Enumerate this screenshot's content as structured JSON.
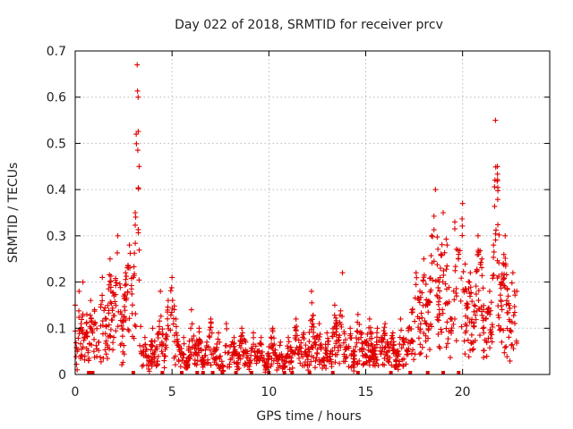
{
  "chart_data": {
    "type": "scatter",
    "title": "Day 022 of 2018, SRMTID for receiver prcv",
    "xlabel": "GPS time / hours",
    "ylabel": "SRMTID / TECUs",
    "xlim": [
      0,
      24.5
    ],
    "ylim": [
      0,
      0.7
    ],
    "xticks": [
      0,
      5,
      10,
      15,
      20
    ],
    "xtick_labels": [
      "0",
      "5",
      "10",
      "15",
      "20"
    ],
    "yticks": [
      0,
      0.1,
      0.2,
      0.3,
      0.4,
      0.5,
      0.6,
      0.7
    ],
    "ytick_labels": [
      "0",
      "0.1",
      "0.2",
      "0.3",
      "0.4",
      "0.5",
      "0.6",
      "0.7"
    ],
    "grid": true,
    "marker": "plus",
    "series_color": "#e00000",
    "series": [
      {
        "name": "SRMTID",
        "x": [
          0.0,
          0.1,
          0.2,
          0.3,
          0.4,
          0.5,
          0.6,
          0.7,
          0.8,
          0.9,
          1.0,
          1.2,
          1.4,
          1.6,
          1.8,
          2.0,
          2.2,
          2.4,
          2.6,
          2.8,
          3.0,
          3.1,
          3.15,
          3.2,
          3.25,
          3.3,
          3.4,
          3.6,
          3.8,
          4.0,
          4.2,
          4.4,
          4.6,
          4.8,
          5.0,
          5.2,
          5.4,
          5.6,
          5.8,
          6.0,
          6.2,
          6.4,
          6.6,
          6.8,
          7.0,
          7.2,
          7.4,
          7.6,
          7.8,
          8.0,
          8.2,
          8.4,
          8.6,
          8.8,
          9.0,
          9.2,
          9.4,
          9.6,
          9.8,
          10.0,
          10.2,
          10.4,
          10.6,
          10.8,
          11.0,
          11.2,
          11.4,
          11.6,
          11.8,
          12.0,
          12.2,
          12.4,
          12.6,
          12.8,
          13.0,
          13.2,
          13.4,
          13.6,
          13.8,
          14.0,
          14.2,
          14.4,
          14.6,
          14.8,
          15.0,
          15.2,
          15.4,
          15.6,
          15.8,
          16.0,
          16.2,
          16.4,
          16.6,
          16.8,
          17.0,
          17.2,
          17.4,
          17.6,
          17.8,
          18.0,
          18.2,
          18.4,
          18.6,
          18.8,
          19.0,
          19.2,
          19.4,
          19.6,
          19.8,
          20.0,
          20.2,
          20.4,
          20.6,
          20.8,
          21.0,
          21.2,
          21.4,
          21.6,
          21.7,
          21.8,
          22.0,
          22.2,
          22.4,
          22.6,
          22.8
        ],
        "y": [
          0.15,
          0.05,
          0.18,
          0.11,
          0.2,
          0.08,
          0.13,
          0.03,
          0.16,
          0.09,
          0.14,
          0.07,
          0.21,
          0.12,
          0.25,
          0.17,
          0.3,
          0.13,
          0.22,
          0.28,
          0.21,
          0.35,
          0.52,
          0.67,
          0.6,
          0.45,
          0.05,
          0.08,
          0.03,
          0.1,
          0.06,
          0.18,
          0.04,
          0.16,
          0.21,
          0.12,
          0.05,
          0.08,
          0.02,
          0.14,
          0.06,
          0.1,
          0.03,
          0.07,
          0.12,
          0.05,
          0.09,
          0.02,
          0.11,
          0.06,
          0.08,
          0.04,
          0.1,
          0.07,
          0.03,
          0.09,
          0.05,
          0.08,
          0.02,
          0.06,
          0.1,
          0.04,
          0.07,
          0.03,
          0.08,
          0.05,
          0.12,
          0.06,
          0.09,
          0.04,
          0.18,
          0.07,
          0.11,
          0.03,
          0.09,
          0.05,
          0.15,
          0.08,
          0.22,
          0.06,
          0.1,
          0.04,
          0.13,
          0.09,
          0.07,
          0.12,
          0.05,
          0.1,
          0.08,
          0.11,
          0.06,
          0.09,
          0.04,
          0.12,
          0.07,
          0.1,
          0.14,
          0.22,
          0.18,
          0.25,
          0.15,
          0.3,
          0.4,
          0.2,
          0.35,
          0.28,
          0.12,
          0.33,
          0.26,
          0.37,
          0.18,
          0.22,
          0.15,
          0.3,
          0.25,
          0.12,
          0.18,
          0.28,
          0.55,
          0.45,
          0.2,
          0.3,
          0.15,
          0.22,
          0.18
        ],
        "floor_x": [
          0.7,
          0.8,
          0.9,
          3.0,
          4.5,
          5.5,
          6.3,
          6.6,
          7.1,
          7.6,
          8.3,
          9.1,
          10.0,
          10.8,
          11.2,
          12.1,
          13.3,
          14.6,
          16.3,
          17.3,
          18.2,
          19.0,
          19.8
        ]
      }
    ]
  }
}
